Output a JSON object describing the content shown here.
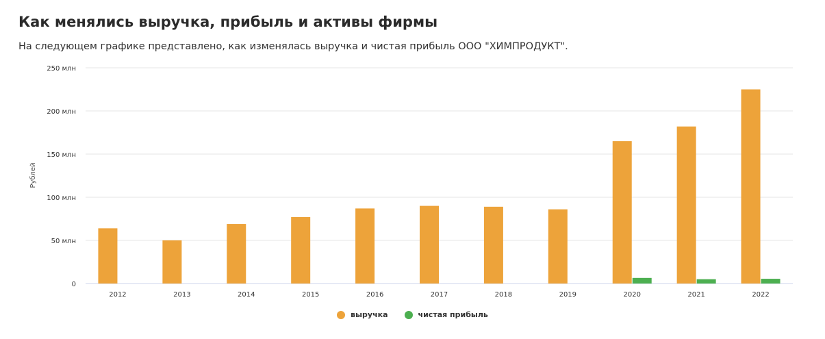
{
  "header": {
    "title": "Как менялись выручка, прибыль и активы фирмы",
    "subtitle": "На следующем графике представлено, как изменялась выручка и чистая прибыль ООО \"ХИМПРОДУКТ\"."
  },
  "chart_data": {
    "type": "bar",
    "ylabel": "Рублей",
    "xlabel": "",
    "ylim": [
      0,
      250000000
    ],
    "y_ticks": [
      {
        "value": 0,
        "label": "0"
      },
      {
        "value": 50000000,
        "label": "50 млн"
      },
      {
        "value": 100000000,
        "label": "100 млн"
      },
      {
        "value": 150000000,
        "label": "150 млн"
      },
      {
        "value": 200000000,
        "label": "200 млн"
      },
      {
        "value": 250000000,
        "label": "250 млн"
      }
    ],
    "grid": true,
    "legend_position": "bottom-center",
    "categories": [
      "2012",
      "2013",
      "2014",
      "2015",
      "2016",
      "2017",
      "2018",
      "2019",
      "2020",
      "2021",
      "2022"
    ],
    "series": [
      {
        "name": "выручка",
        "color": "#eda33a",
        "values": [
          64000000,
          50000000,
          69000000,
          77000000,
          87000000,
          90000000,
          89000000,
          86000000,
          165000000,
          182000000,
          225000000
        ]
      },
      {
        "name": "чистая прибыль",
        "color": "#4caf50",
        "values": [
          0,
          0,
          0,
          0,
          0,
          0,
          0,
          0,
          6500000,
          5000000,
          5500000
        ]
      }
    ]
  }
}
